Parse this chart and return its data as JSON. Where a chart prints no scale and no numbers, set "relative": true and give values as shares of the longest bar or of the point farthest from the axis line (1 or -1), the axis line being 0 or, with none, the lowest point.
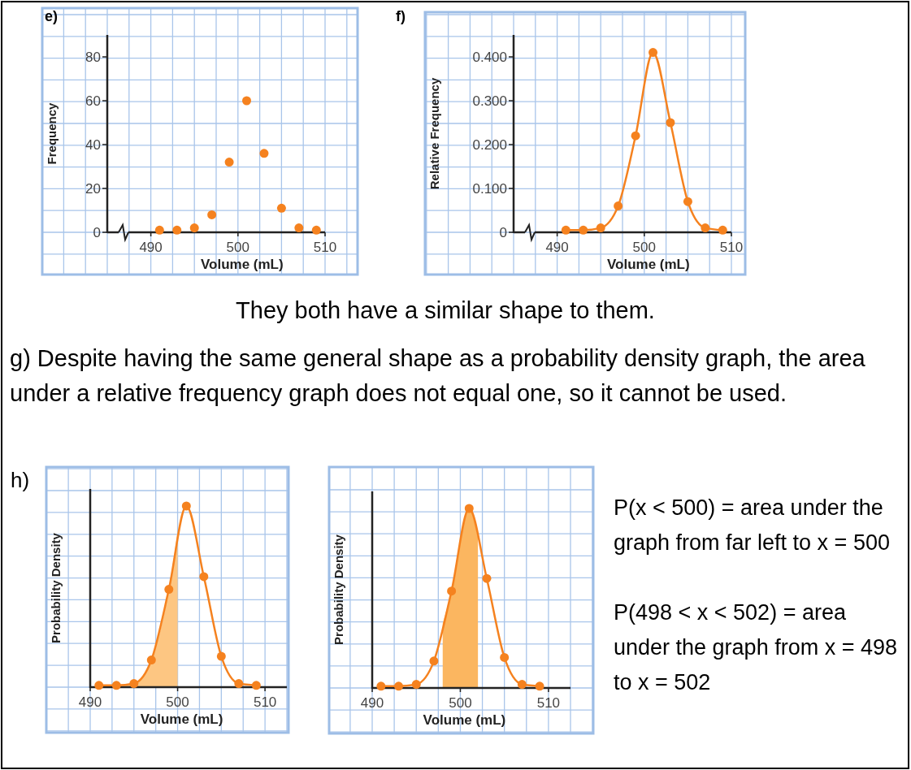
{
  "chart_data": [
    {
      "type": "scatter",
      "title": "e)",
      "xlabel": "Volume (mL)",
      "ylabel": "Frequency",
      "x": [
        491,
        493,
        495,
        497,
        499,
        501,
        503,
        505,
        507,
        509
      ],
      "values": [
        1,
        1,
        2,
        8,
        32,
        60,
        36,
        11,
        2,
        1
      ],
      "color": "#f5821f",
      "marker": "circle",
      "xlim": [
        485,
        510
      ],
      "xticks": [
        490,
        500,
        510
      ],
      "ylim": [
        0,
        90
      ],
      "yticks": [
        0,
        20,
        40,
        60,
        80
      ],
      "grid": true
    },
    {
      "type": "line",
      "title": "f)",
      "xlabel": "Volume (mL)",
      "ylabel": "Relative Frequency",
      "x": [
        491,
        493,
        495,
        497,
        499,
        501,
        503,
        505,
        507,
        509
      ],
      "values": [
        0.005,
        0.005,
        0.01,
        0.06,
        0.22,
        0.41,
        0.25,
        0.07,
        0.01,
        0.005
      ],
      "color": "#f5821f",
      "marker": "circle",
      "line_style": "solid",
      "xlim": [
        485,
        510
      ],
      "xticks": [
        490,
        500,
        510
      ],
      "ylim": [
        0,
        0.45
      ],
      "yticks": [
        {
          "value": 0,
          "label": "0"
        },
        {
          "value": 0.1,
          "label": "0.100"
        },
        {
          "value": 0.2,
          "label": "0.200"
        },
        {
          "value": 0.3,
          "label": "0.300"
        },
        {
          "value": 0.4,
          "label": "0.400"
        }
      ],
      "grid": true
    },
    {
      "type": "other",
      "annotations": [
        "They both have a similar shape to them.",
        "g) Despite having the same general shape as a probability density graph, the area under a relative frequency graph does not equal one, so it cannot be used."
      ]
    },
    {
      "type": "line",
      "title": "h)",
      "xlabel": "Volume (mL)",
      "ylabel": "Probability Density",
      "relative": true,
      "line_style": "solid",
      "xlim": [
        490,
        512.5
      ],
      "xticks": [
        490,
        500,
        510
      ],
      "grid": true,
      "series": [
        {
          "type": "area",
          "color": "#fdc682",
          "marker": "none",
          "x": [
            491,
            493,
            495,
            497,
            499,
            500
          ],
          "values": [
            0.01,
            0.01,
            0.02,
            0.15,
            0.54,
            0.86
          ]
        },
        {
          "type": "line",
          "color": "#f5821f",
          "marker": "circle",
          "x": [
            491,
            493,
            495,
            497,
            499,
            501,
            503,
            505,
            507,
            509
          ],
          "values": [
            0.01,
            0.01,
            0.02,
            0.15,
            0.54,
            1,
            0.61,
            0.17,
            0.02,
            0.01
          ]
        }
      ]
    },
    {
      "type": "line",
      "xlabel": "Volume (mL)",
      "ylabel": "Probability Density",
      "relative": true,
      "line_style": "solid",
      "xlim": [
        490,
        512.5
      ],
      "xticks": [
        490,
        500,
        510
      ],
      "grid": true,
      "series": [
        {
          "type": "area",
          "color": "#fbb660",
          "marker": "none",
          "x": [
            498,
            499,
            501,
            502
          ],
          "values": [
            0.36,
            0.54,
            1,
            0.84
          ]
        },
        {
          "type": "line",
          "color": "#f5821f",
          "marker": "circle",
          "x": [
            491,
            493,
            495,
            497,
            499,
            501,
            503,
            505,
            507,
            509
          ],
          "values": [
            0.01,
            0.01,
            0.02,
            0.15,
            0.54,
            1,
            0.61,
            0.17,
            0.02,
            0.01
          ]
        }
      ]
    },
    {
      "type": "other",
      "annotations": [
        "P(x < 500) = area under the graph from far left to x = 500",
        "P(498 < x < 502) = area under the graph from x = 498 to x = 502"
      ]
    }
  ]
}
